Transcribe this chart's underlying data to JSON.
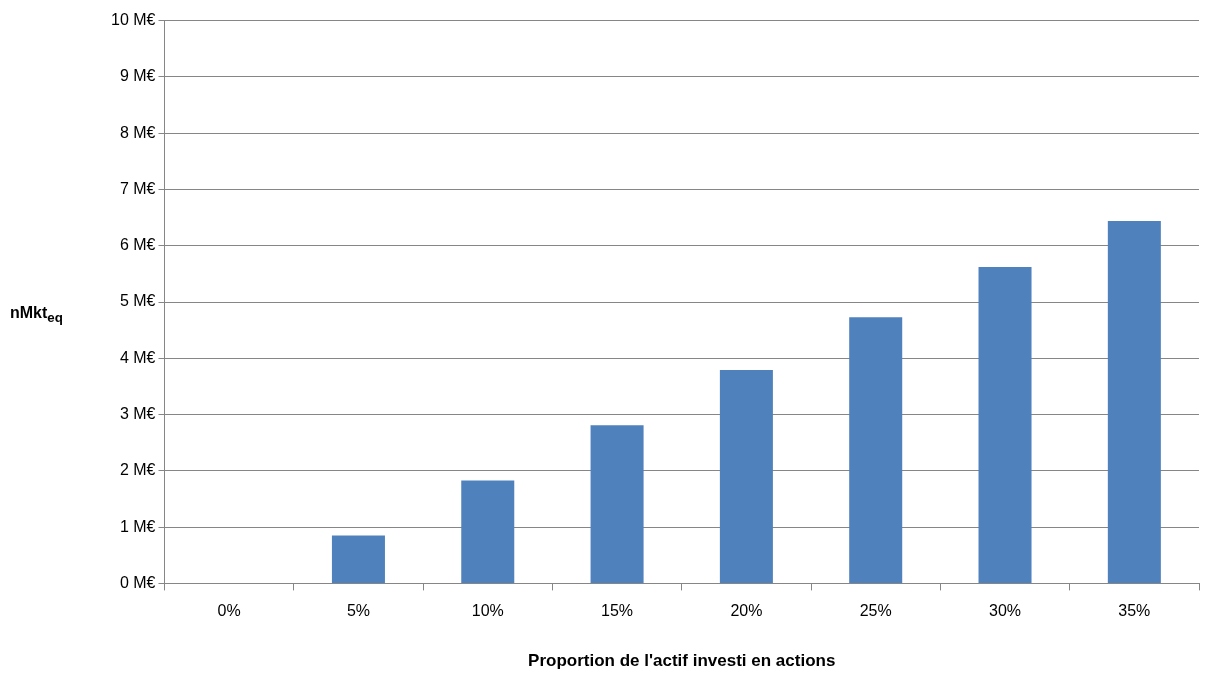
{
  "chart_data": {
    "type": "bar",
    "xlabel": "Proportion de l'actif investi en actions",
    "ylabel": "nMkt$_{eq}$",
    "categories": [
      "0%",
      "5%",
      "10%",
      "15%",
      "20%",
      "25%",
      "30%",
      "35%"
    ],
    "values": [
      0,
      0.85,
      1.83,
      2.81,
      3.79,
      4.73,
      5.62,
      6.44
    ],
    "color": "#4f81bd",
    "ylim": [
      0,
      10
    ],
    "yticks": [
      {
        "value": 0,
        "label": "0 M€"
      },
      {
        "value": 1,
        "label": "1 M€"
      },
      {
        "value": 2,
        "label": "2 M€"
      },
      {
        "value": 3,
        "label": "3 M€"
      },
      {
        "value": 4,
        "label": "4 M€"
      },
      {
        "value": 5,
        "label": "5 M€"
      },
      {
        "value": 6,
        "label": "6 M€"
      },
      {
        "value": 7,
        "label": "7 M€"
      },
      {
        "value": 8,
        "label": "8 M€"
      },
      {
        "value": 9,
        "label": "9 M€"
      },
      {
        "value": 10,
        "label": "10 M€"
      }
    ],
    "grid": "y",
    "legend": false
  }
}
